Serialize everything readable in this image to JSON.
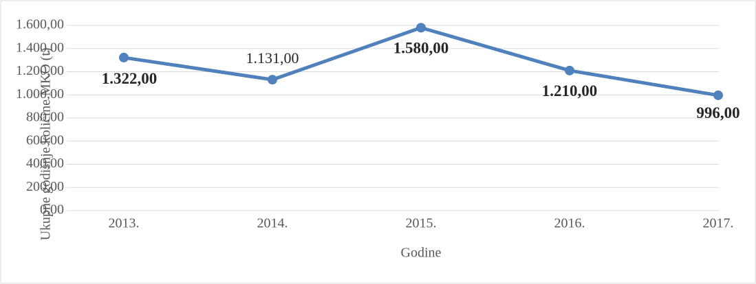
{
  "chart_data": {
    "type": "line",
    "categories": [
      "2013.",
      "2014.",
      "2015.",
      "2016.",
      "2017."
    ],
    "series": [
      {
        "color": "#4f81bd",
        "values": [
          1322,
          1131,
          1580,
          1210,
          996
        ],
        "value_labels": [
          "1.322,00",
          "1.131,00",
          "1.580,00",
          "1.210,00",
          "996,00"
        ]
      }
    ],
    "ylim": [
      0,
      1600
    ],
    "yticks": [
      {
        "value": 0,
        "label": "0,00"
      },
      {
        "value": 200,
        "label": "200,00"
      },
      {
        "value": 400,
        "label": "400,00"
      },
      {
        "value": 600,
        "label": "600,00"
      },
      {
        "value": 800,
        "label": "800,00"
      },
      {
        "value": 1000,
        "label": "1.000,00"
      },
      {
        "value": 1200,
        "label": "1.200,00"
      },
      {
        "value": 1400,
        "label": "1.400,00"
      },
      {
        "value": 1600,
        "label": "1.600,00"
      }
    ],
    "xlabel": "Godine",
    "ylabel": "Ukupne godišnje količine MKO (t)",
    "grid": true
  }
}
